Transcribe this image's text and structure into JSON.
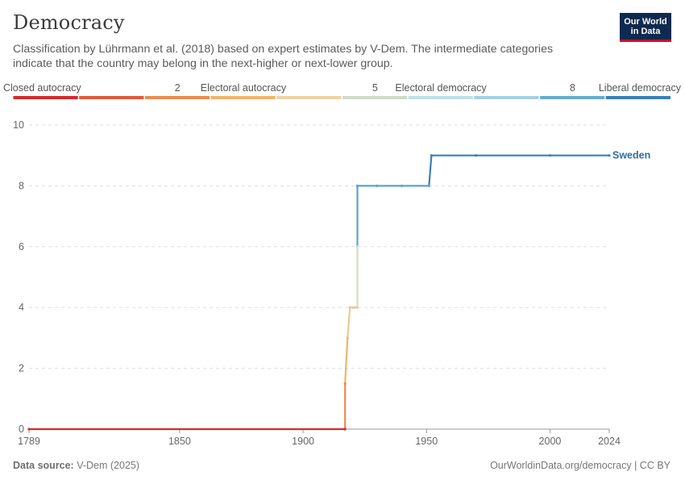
{
  "header": {
    "title": "Democracy",
    "subtitle": "Classification by Lührmann et al. (2018) based on expert estimates by V-Dem. The intermediate categories indicate that the country may belong in the next-higher or next-lower group.",
    "logo_line1": "Our World",
    "logo_line2": "in Data"
  },
  "legend": {
    "labels": [
      {
        "text": "Closed autocracy",
        "at": 0,
        "anchor": "start"
      },
      {
        "text": "2",
        "at": 2.5,
        "anchor": "middle"
      },
      {
        "text": "Electoral autocracy",
        "at": 3.5,
        "anchor": "middle"
      },
      {
        "text": "5",
        "at": 5.5,
        "anchor": "middle"
      },
      {
        "text": "Electoral democracy",
        "at": 6.5,
        "anchor": "middle"
      },
      {
        "text": "8",
        "at": 8.5,
        "anchor": "middle"
      },
      {
        "text": "Liberal democracy",
        "at": 10,
        "anchor": "end"
      }
    ],
    "colors": [
      "#d42a2a",
      "#e05a3a",
      "#ec8c4e",
      "#f3b46a",
      "#eed3a6",
      "#cfdcc6",
      "#bfe0e8",
      "#a3d0e0",
      "#6aaad0",
      "#3a80b8"
    ]
  },
  "chart_data": {
    "type": "line",
    "title": "Democracy",
    "xlabel": "",
    "ylabel": "",
    "xlim": [
      1789,
      2024
    ],
    "ylim": [
      0,
      10
    ],
    "x_ticks": [
      1789,
      1850,
      1900,
      1950,
      2000,
      2024
    ],
    "y_ticks": [
      0,
      2,
      4,
      6,
      8,
      10
    ],
    "grid": true,
    "series": [
      {
        "name": "Sweden",
        "color": "#2c6fa6",
        "points": [
          [
            1789,
            0
          ],
          [
            1917,
            0
          ],
          [
            1917,
            1.5
          ],
          [
            1918,
            3
          ],
          [
            1919,
            4
          ],
          [
            1920,
            4
          ],
          [
            1921,
            4
          ],
          [
            1922,
            4
          ],
          [
            1922,
            6
          ],
          [
            1922,
            8
          ],
          [
            1930,
            8
          ],
          [
            1940,
            8
          ],
          [
            1951,
            8
          ],
          [
            1952,
            9
          ],
          [
            1970,
            9
          ],
          [
            2000,
            9
          ],
          [
            2024,
            9
          ]
        ]
      }
    ]
  },
  "footer": {
    "source_label": "Data source:",
    "source_value": "V-Dem (2025)",
    "right": "OurWorldinData.org/democracy | CC BY"
  }
}
